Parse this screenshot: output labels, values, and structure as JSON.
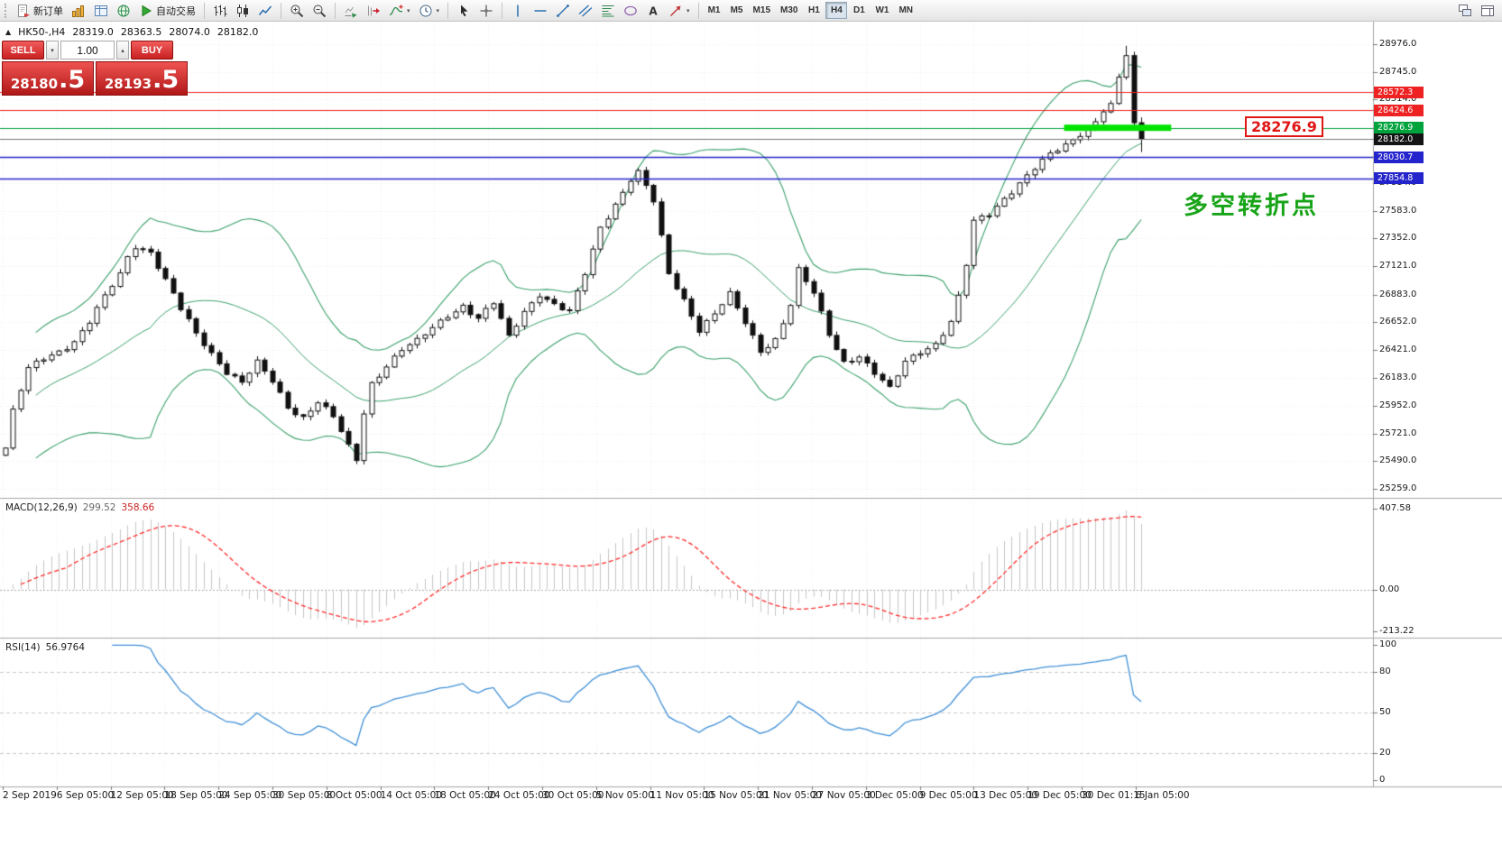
{
  "toolbar": {
    "items": [
      {
        "type": "grip"
      },
      {
        "type": "button",
        "name": "new-order-button",
        "icon": "new-order-icon",
        "label": "新订单"
      },
      {
        "type": "button",
        "name": "chart-window-button",
        "icon": "gold-chart-icon"
      },
      {
        "type": "button",
        "name": "market-watch-button",
        "icon": "table-icon"
      },
      {
        "type": "button",
        "name": "web-terminal-button",
        "icon": "globe-icon"
      },
      {
        "type": "button",
        "name": "autotrading-button",
        "icon": "play-icon",
        "label": "自动交易"
      },
      {
        "type": "sep"
      },
      {
        "type": "button",
        "name": "bar-chart-button",
        "icon": "ohlc-bars-icon"
      },
      {
        "type": "button",
        "name": "candlestick-chart-button",
        "icon": "candles-icon"
      },
      {
        "type": "button",
        "name": "line-chart-button",
        "icon": "line-chart-icon"
      },
      {
        "type": "sep"
      },
      {
        "type": "button",
        "name": "zoom-in-button",
        "icon": "zoom-in-icon"
      },
      {
        "type": "button",
        "name": "zoom-out-button",
        "icon": "zoom-out-icon"
      },
      {
        "type": "sep"
      },
      {
        "type": "button",
        "name": "auto-scroll-button",
        "icon": "auto-scroll-icon"
      },
      {
        "type": "button",
        "name": "chart-shift-button",
        "icon": "chart-shift-icon"
      },
      {
        "type": "button",
        "name": "indicators-button",
        "icon": "indicators-icon",
        "caret": true
      },
      {
        "type": "button",
        "name": "periods-button",
        "icon": "clock-icon",
        "caret": true
      },
      {
        "type": "sep"
      },
      {
        "type": "button",
        "name": "cursor-button",
        "icon": "cursor-icon"
      },
      {
        "type": "button",
        "name": "crosshair-button",
        "icon": "crosshair-icon"
      },
      {
        "type": "sep"
      },
      {
        "type": "button",
        "name": "vertical-line-button",
        "icon": "vline-icon"
      },
      {
        "type": "button",
        "name": "horizontal-line-button",
        "icon": "hline-icon"
      },
      {
        "type": "button",
        "name": "trendline-button",
        "icon": "trendline-icon"
      },
      {
        "type": "button",
        "name": "equidistant-channel-button",
        "icon": "channel-icon"
      },
      {
        "type": "button",
        "name": "fibonacci-button",
        "icon": "fibonacci-icon"
      },
      {
        "type": "button",
        "name": "shapes-button",
        "icon": "shapes-icon"
      },
      {
        "type": "button",
        "name": "text-label-button",
        "icon": "text-icon"
      },
      {
        "type": "button",
        "name": "arrows-button",
        "icon": "arrow-icon",
        "caret": true
      },
      {
        "type": "sep"
      }
    ],
    "timeframes": {
      "items": [
        "M1",
        "M5",
        "M15",
        "M30",
        "H1",
        "H4",
        "D1",
        "W1",
        "MN"
      ],
      "active": "H4"
    },
    "right_items": [
      {
        "type": "button",
        "name": "new-chart-button",
        "icon": "cascade-icon"
      },
      {
        "type": "button",
        "name": "window-layout-button",
        "icon": "docking-icon"
      }
    ]
  },
  "quote_bar": {
    "marker": "▲",
    "title": "HK50-,H4",
    "open": "28319.0",
    "high": "28363.5",
    "low": "28074.0",
    "close": "28182.0"
  },
  "trade_panel": {
    "sell_label": "SELL",
    "buy_label": "BUY",
    "volume": "1.00",
    "volume_down_glyph": "▾",
    "volume_up_glyph": "▴",
    "sell_price_main": "28180",
    "sell_price_big": ".5",
    "buy_price_main": "28193",
    "buy_price_big": ".5"
  },
  "indicator_labels": {
    "macd_name": "MACD(12,26,9)",
    "macd_value1": "299.52",
    "macd_value2": "358.66",
    "rsi_name": "RSI(14)",
    "rsi_value": "56.9764"
  },
  "chart_data": {
    "type": "candlestick",
    "title": "HK50-,H4",
    "last_quote": {
      "open": 28319.0,
      "high": 28363.5,
      "low": 28074.0,
      "close": 28182.0
    },
    "candle_count": 150,
    "close_waypoints": [
      [
        0,
        25600
      ],
      [
        1,
        25900
      ],
      [
        3,
        26250
      ],
      [
        5,
        26350
      ],
      [
        7,
        26420
      ],
      [
        9,
        26500
      ],
      [
        11,
        26650
      ],
      [
        13,
        26850
      ],
      [
        15,
        27050
      ],
      [
        16,
        27200
      ],
      [
        17,
        27300
      ],
      [
        19,
        27250
      ],
      [
        21,
        27000
      ],
      [
        23,
        26750
      ],
      [
        25,
        26550
      ],
      [
        27,
        26400
      ],
      [
        29,
        26250
      ],
      [
        31,
        26150
      ],
      [
        33,
        26300
      ],
      [
        35,
        26150
      ],
      [
        37,
        25950
      ],
      [
        39,
        25870
      ],
      [
        41,
        25990
      ],
      [
        43,
        25850
      ],
      [
        45,
        25600
      ],
      [
        46,
        25500
      ],
      [
        47,
        25900
      ],
      [
        48,
        26150
      ],
      [
        50,
        26300
      ],
      [
        52,
        26420
      ],
      [
        54,
        26480
      ],
      [
        56,
        26600
      ],
      [
        58,
        26720
      ],
      [
        60,
        26800
      ],
      [
        62,
        26680
      ],
      [
        64,
        26800
      ],
      [
        66,
        26520
      ],
      [
        68,
        26750
      ],
      [
        70,
        26900
      ],
      [
        72,
        26800
      ],
      [
        74,
        26720
      ],
      [
        76,
        27050
      ],
      [
        78,
        27450
      ],
      [
        80,
        27650
      ],
      [
        82,
        27850
      ],
      [
        83,
        27900
      ],
      [
        85,
        27650
      ],
      [
        87,
        27050
      ],
      [
        89,
        26850
      ],
      [
        91,
        26600
      ],
      [
        93,
        26720
      ],
      [
        95,
        26870
      ],
      [
        97,
        26640
      ],
      [
        99,
        26420
      ],
      [
        101,
        26520
      ],
      [
        103,
        26800
      ],
      [
        104,
        27080
      ],
      [
        106,
        26880
      ],
      [
        108,
        26550
      ],
      [
        110,
        26330
      ],
      [
        112,
        26380
      ],
      [
        114,
        26220
      ],
      [
        116,
        26080
      ],
      [
        118,
        26320
      ],
      [
        120,
        26420
      ],
      [
        122,
        26480
      ],
      [
        124,
        26650
      ],
      [
        125,
        26850
      ],
      [
        126,
        27120
      ],
      [
        127,
        27480
      ],
      [
        129,
        27560
      ],
      [
        131,
        27700
      ],
      [
        133,
        27820
      ],
      [
        135,
        27930
      ],
      [
        137,
        28040
      ],
      [
        139,
        28130
      ],
      [
        141,
        28240
      ],
      [
        143,
        28340
      ],
      [
        145,
        28480
      ],
      [
        146,
        28700
      ],
      [
        147,
        28880
      ],
      [
        148,
        28319
      ],
      [
        149,
        28182
      ]
    ],
    "price_axis": {
      "ylim": [
        25184,
        29164
      ],
      "ticks": [
        28976.0,
        28745.0,
        28514.0,
        27814.0,
        27583.0,
        27352.0,
        27121.0,
        26883.0,
        26652.0,
        26421.0,
        26183.0,
        25952.0,
        25721.0,
        25490.0,
        25259.0
      ]
    },
    "bollinger": {
      "period": 20,
      "deviation": 2,
      "color": "#3aa06a"
    },
    "hlines": [
      {
        "price": 28572.3,
        "color": "#ee2222",
        "tag_bg": "#ee2222"
      },
      {
        "price": 28424.6,
        "color": "#ee2222",
        "tag_bg": "#ee2222"
      },
      {
        "price": 28276.9,
        "color": "#00a33c",
        "tag_bg": "#00a33c"
      },
      {
        "price": 28182.0,
        "color": "#777777",
        "tag_bg": "#141414"
      },
      {
        "price": 28030.7,
        "color": "#2424cc",
        "tag_bg": "#2424cc"
      },
      {
        "price": 27854.8,
        "color": "#2424cc",
        "tag_bg": "#2424cc"
      }
    ],
    "highlight_segment": {
      "price": 28276.9,
      "x_start_frac": 0.775,
      "x_end_frac": 0.853,
      "color": "#00e400",
      "thickness": 7
    },
    "callout": {
      "text": "28276.9",
      "color": "#e01515"
    },
    "annotation": {
      "text": "多空转折点",
      "color": "#18a418"
    },
    "macd": {
      "fast": 12,
      "slow": 26,
      "signal": 9,
      "ylim": [
        458,
        -243
      ],
      "axis_ticks": [
        "407.58",
        "0.00",
        "-213.22"
      ],
      "histogram_color": "#c6c6c6",
      "signal_color": "#ff2a2a"
    },
    "rsi": {
      "period": 14,
      "ylim": [
        105,
        -5
      ],
      "axis_ticks": [
        "100",
        "80",
        "50",
        "20",
        "0"
      ],
      "levels": [
        80,
        50,
        20
      ],
      "line_color": "#3f8fd6"
    },
    "time_axis": [
      "2 Sep 2019",
      "6 Sep 05:00",
      "12 Sep 05:00",
      "18 Sep 05:00",
      "24 Sep 05:00",
      "30 Sep 05:00",
      "8 Oct 05:00",
      "14 Oct 05:00",
      "18 Oct 05:00",
      "24 Oct 05:00",
      "30 Oct 05:00",
      "5 Nov 05:00",
      "11 Nov 05:00",
      "15 Nov 05:00",
      "21 Nov 05:00",
      "27 Nov 05:00",
      "3 Dec 05:00",
      "9 Dec 05:00",
      "13 Dec 05:00",
      "19 Dec 05:00",
      "30 Dec 01:15",
      "6 Jan 05:00"
    ]
  }
}
